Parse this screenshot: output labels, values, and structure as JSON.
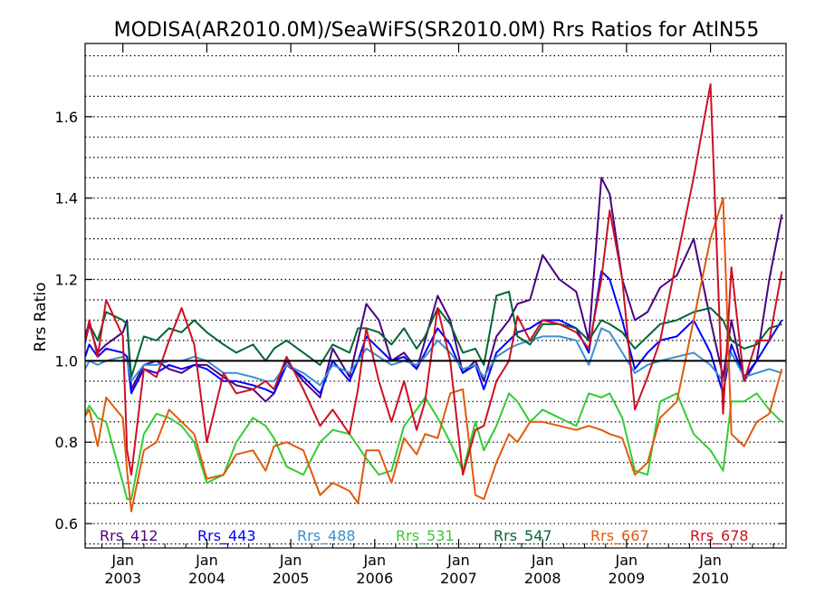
{
  "chart_data": {
    "type": "line",
    "title": "MODISA(AR2010.0M)/SeaWiFS(SR2010.0M)  Rrs Ratios for AtlN55",
    "ylabel": "Rrs Ratio",
    "xlabel": "",
    "xlim": [
      2002.55,
      2010.9
    ],
    "ylim": [
      0.54,
      1.78
    ],
    "yticks": [
      0.6,
      0.8,
      1.0,
      1.2,
      1.4,
      1.6
    ],
    "ytick_labels": [
      "0.6",
      "0.8",
      "1.0",
      "1.2",
      "1.4",
      "1.6"
    ],
    "grid": "horizontal dotted",
    "reference_line": 1.0,
    "xticks": [
      {
        "top": "Jan",
        "bottom": "2003",
        "x": 2003.0
      },
      {
        "top": "Jan",
        "bottom": "2004",
        "x": 2004.0
      },
      {
        "top": "Jan",
        "bottom": "2005",
        "x": 2005.0
      },
      {
        "top": "Jan",
        "bottom": "2006",
        "x": 2006.0
      },
      {
        "top": "Jan",
        "bottom": "2007",
        "x": 2007.0
      },
      {
        "top": "Jan",
        "bottom": "2008",
        "x": 2008.0
      },
      {
        "top": "Jan",
        "bottom": "2009",
        "x": 2009.0
      },
      {
        "top": "Jan",
        "bottom": "2010",
        "x": 2010.0
      }
    ],
    "legend_placement": "bottom",
    "series": [
      {
        "name": "Rrs_412",
        "color": "#4b0082",
        "x": [
          2002.5,
          2002.6,
          2002.7,
          2002.8,
          2003.0,
          2003.05,
          2003.1,
          2003.25,
          2003.4,
          2003.55,
          2003.7,
          2003.85,
          2004.0,
          2004.2,
          2004.35,
          2004.55,
          2004.7,
          2004.8,
          2004.95,
          2005.15,
          2005.35,
          2005.5,
          2005.7,
          2005.8,
          2005.9,
          2006.05,
          2006.2,
          2006.35,
          2006.5,
          2006.6,
          2006.75,
          2006.9,
          2007.05,
          2007.2,
          2007.3,
          2007.45,
          2007.6,
          2007.7,
          2007.85,
          2008.0,
          2008.2,
          2008.4,
          2008.55,
          2008.7,
          2008.8,
          2008.95,
          2009.1,
          2009.25,
          2009.4,
          2009.6,
          2009.8,
          2010.0,
          2010.15,
          2010.25,
          2010.4,
          2010.55,
          2010.7,
          2010.85
        ],
        "values": [
          1.0,
          1.09,
          1.02,
          1.04,
          1.07,
          1.1,
          0.93,
          0.99,
          1.0,
          0.98,
          0.97,
          0.99,
          0.99,
          0.96,
          0.94,
          0.93,
          0.9,
          0.92,
          1.0,
          0.95,
          0.91,
          1.03,
          0.96,
          1.05,
          1.14,
          1.1,
          1.0,
          1.02,
          0.98,
          1.05,
          1.16,
          1.1,
          0.97,
          1.0,
          0.95,
          1.06,
          1.1,
          1.14,
          1.15,
          1.26,
          1.2,
          1.17,
          1.05,
          1.45,
          1.41,
          1.2,
          1.1,
          1.12,
          1.18,
          1.21,
          1.3,
          1.1,
          0.96,
          1.1,
          0.95,
          1.0,
          1.2,
          1.36
        ]
      },
      {
        "name": "Rrs_443",
        "color": "#0000ff",
        "x": [
          2002.5,
          2002.6,
          2002.7,
          2002.8,
          2003.0,
          2003.05,
          2003.1,
          2003.25,
          2003.4,
          2003.55,
          2003.7,
          2003.85,
          2004.0,
          2004.2,
          2004.35,
          2004.55,
          2004.7,
          2004.8,
          2004.95,
          2005.15,
          2005.35,
          2005.5,
          2005.7,
          2005.8,
          2005.9,
          2006.05,
          2006.2,
          2006.35,
          2006.5,
          2006.6,
          2006.75,
          2006.9,
          2007.05,
          2007.2,
          2007.3,
          2007.45,
          2007.6,
          2007.7,
          2007.85,
          2008.0,
          2008.2,
          2008.4,
          2008.55,
          2008.7,
          2008.8,
          2008.95,
          2009.1,
          2009.25,
          2009.4,
          2009.6,
          2009.8,
          2010.0,
          2010.15,
          2010.25,
          2010.4,
          2010.55,
          2010.7,
          2010.85
        ],
        "values": [
          0.98,
          1.04,
          1.01,
          1.03,
          1.02,
          1.01,
          0.92,
          0.98,
          0.97,
          0.99,
          0.98,
          0.99,
          0.98,
          0.95,
          0.95,
          0.94,
          0.93,
          0.92,
          0.99,
          0.96,
          0.92,
          1.0,
          0.95,
          1.0,
          1.06,
          1.03,
          1.0,
          1.01,
          0.98,
          1.02,
          1.08,
          1.04,
          0.97,
          0.99,
          0.93,
          1.02,
          1.05,
          1.07,
          1.08,
          1.1,
          1.1,
          1.08,
          1.02,
          1.22,
          1.2,
          1.1,
          0.98,
          1.02,
          1.05,
          1.06,
          1.1,
          1.02,
          0.92,
          1.04,
          0.96,
          1.0,
          1.05,
          1.1
        ]
      },
      {
        "name": "Rrs_488",
        "color": "#3a8fd0",
        "x": [
          2002.5,
          2002.6,
          2002.7,
          2002.8,
          2003.0,
          2003.05,
          2003.1,
          2003.25,
          2003.4,
          2003.55,
          2003.7,
          2003.85,
          2004.0,
          2004.2,
          2004.35,
          2004.55,
          2004.7,
          2004.8,
          2004.95,
          2005.15,
          2005.35,
          2005.5,
          2005.7,
          2005.8,
          2005.9,
          2006.05,
          2006.2,
          2006.35,
          2006.5,
          2006.6,
          2006.75,
          2006.9,
          2007.05,
          2007.2,
          2007.3,
          2007.45,
          2007.6,
          2007.7,
          2007.85,
          2008.0,
          2008.2,
          2008.4,
          2008.55,
          2008.7,
          2008.8,
          2008.95,
          2009.1,
          2009.25,
          2009.4,
          2009.6,
          2009.8,
          2010.0,
          2010.15,
          2010.25,
          2010.4,
          2010.55,
          2010.7,
          2010.85
        ],
        "values": [
          0.96,
          1.0,
          0.99,
          1.0,
          1.01,
          1.0,
          0.95,
          0.99,
          0.99,
          1.0,
          1.0,
          1.01,
          1.0,
          0.97,
          0.97,
          0.96,
          0.95,
          0.95,
          0.99,
          0.97,
          0.94,
          0.99,
          0.97,
          1.0,
          1.03,
          1.01,
          0.99,
          1.0,
          0.99,
          1.01,
          1.05,
          1.02,
          0.98,
          0.99,
          0.96,
          1.01,
          1.03,
          1.04,
          1.05,
          1.06,
          1.06,
          1.05,
          0.99,
          1.08,
          1.07,
          1.02,
          0.97,
          0.99,
          1.0,
          1.01,
          1.02,
          0.99,
          0.95,
          1.02,
          0.96,
          0.97,
          0.98,
          0.97
        ]
      },
      {
        "name": "Rrs_531",
        "color": "#33cc33",
        "x": [
          2002.5,
          2002.6,
          2002.7,
          2002.8,
          2003.0,
          2003.05,
          2003.1,
          2003.25,
          2003.4,
          2003.55,
          2003.7,
          2003.85,
          2004.0,
          2004.2,
          2004.35,
          2004.55,
          2004.7,
          2004.8,
          2004.95,
          2005.15,
          2005.35,
          2005.5,
          2005.7,
          2005.8,
          2005.9,
          2006.05,
          2006.2,
          2006.35,
          2006.5,
          2006.6,
          2006.75,
          2006.9,
          2007.05,
          2007.2,
          2007.3,
          2007.45,
          2007.6,
          2007.7,
          2007.85,
          2008.0,
          2008.2,
          2008.4,
          2008.55,
          2008.7,
          2008.8,
          2008.95,
          2009.1,
          2009.25,
          2009.4,
          2009.6,
          2009.8,
          2010.0,
          2010.15,
          2010.25,
          2010.4,
          2010.55,
          2010.7,
          2010.85
        ],
        "values": [
          0.85,
          0.89,
          0.86,
          0.85,
          0.7,
          0.66,
          0.66,
          0.82,
          0.87,
          0.86,
          0.84,
          0.8,
          0.7,
          0.72,
          0.8,
          0.86,
          0.84,
          0.81,
          0.74,
          0.72,
          0.8,
          0.83,
          0.82,
          0.79,
          0.76,
          0.72,
          0.73,
          0.84,
          0.88,
          0.91,
          0.86,
          0.8,
          0.73,
          0.85,
          0.78,
          0.84,
          0.92,
          0.9,
          0.85,
          0.88,
          0.86,
          0.84,
          0.92,
          0.91,
          0.92,
          0.86,
          0.73,
          0.72,
          0.9,
          0.92,
          0.82,
          0.78,
          0.73,
          0.9,
          0.9,
          0.92,
          0.88,
          0.85
        ]
      },
      {
        "name": "Rrs_547",
        "color": "#006633",
        "x": [
          2002.5,
          2002.6,
          2002.7,
          2002.8,
          2003.0,
          2003.05,
          2003.1,
          2003.25,
          2003.4,
          2003.55,
          2003.7,
          2003.85,
          2004.0,
          2004.2,
          2004.35,
          2004.55,
          2004.7,
          2004.8,
          2004.95,
          2005.15,
          2005.35,
          2005.5,
          2005.7,
          2005.8,
          2005.9,
          2006.05,
          2006.2,
          2006.35,
          2006.5,
          2006.6,
          2006.75,
          2006.9,
          2007.05,
          2007.2,
          2007.3,
          2007.45,
          2007.6,
          2007.7,
          2007.85,
          2008.0,
          2008.2,
          2008.4,
          2008.55,
          2008.7,
          2008.8,
          2008.95,
          2009.1,
          2009.25,
          2009.4,
          2009.6,
          2009.8,
          2010.0,
          2010.15,
          2010.25,
          2010.4,
          2010.55,
          2010.7,
          2010.85
        ],
        "values": [
          1.04,
          1.09,
          1.05,
          1.12,
          1.1,
          1.09,
          0.96,
          1.06,
          1.05,
          1.08,
          1.07,
          1.1,
          1.07,
          1.04,
          1.02,
          1.04,
          1.0,
          1.03,
          1.05,
          1.02,
          0.99,
          1.04,
          1.02,
          1.08,
          1.08,
          1.07,
          1.04,
          1.08,
          1.03,
          1.06,
          1.13,
          1.09,
          1.02,
          1.03,
          0.99,
          1.16,
          1.17,
          1.06,
          1.04,
          1.09,
          1.09,
          1.08,
          1.05,
          1.1,
          1.09,
          1.07,
          1.03,
          1.06,
          1.09,
          1.1,
          1.12,
          1.13,
          1.1,
          1.05,
          1.03,
          1.04,
          1.08,
          1.09
        ]
      },
      {
        "name": "Rrs_667",
        "color": "#e05a10",
        "x": [
          2002.5,
          2002.6,
          2002.7,
          2002.8,
          2003.0,
          2003.05,
          2003.1,
          2003.25,
          2003.4,
          2003.55,
          2003.7,
          2003.85,
          2004.0,
          2004.2,
          2004.35,
          2004.55,
          2004.7,
          2004.8,
          2004.95,
          2005.15,
          2005.35,
          2005.5,
          2005.7,
          2005.8,
          2005.9,
          2006.05,
          2006.2,
          2006.35,
          2006.5,
          2006.6,
          2006.75,
          2006.9,
          2007.05,
          2007.2,
          2007.3,
          2007.45,
          2007.6,
          2007.7,
          2007.85,
          2008.0,
          2008.2,
          2008.4,
          2008.55,
          2008.7,
          2008.8,
          2008.95,
          2009.1,
          2009.25,
          2009.4,
          2009.6,
          2009.8,
          2010.0,
          2010.15,
          2010.25,
          2010.4,
          2010.55,
          2010.7,
          2010.85
        ],
        "values": [
          0.85,
          0.88,
          0.79,
          0.91,
          0.86,
          0.73,
          0.63,
          0.78,
          0.8,
          0.88,
          0.85,
          0.82,
          0.71,
          0.72,
          0.77,
          0.78,
          0.73,
          0.79,
          0.8,
          0.78,
          0.67,
          0.7,
          0.68,
          0.65,
          0.78,
          0.78,
          0.7,
          0.81,
          0.77,
          0.82,
          0.81,
          0.92,
          0.93,
          0.67,
          0.66,
          0.75,
          0.82,
          0.8,
          0.85,
          0.85,
          0.84,
          0.83,
          0.84,
          0.83,
          0.82,
          0.81,
          0.72,
          0.75,
          0.86,
          0.9,
          1.1,
          1.3,
          1.4,
          0.82,
          0.79,
          0.85,
          0.87,
          0.98
        ]
      },
      {
        "name": "Rrs_678",
        "color": "#cc1122",
        "x": [
          2002.5,
          2002.6,
          2002.7,
          2002.8,
          2003.0,
          2003.05,
          2003.1,
          2003.25,
          2003.4,
          2003.55,
          2003.7,
          2003.85,
          2004.0,
          2004.2,
          2004.35,
          2004.55,
          2004.7,
          2004.8,
          2004.95,
          2005.15,
          2005.35,
          2005.5,
          2005.7,
          2005.8,
          2005.9,
          2006.05,
          2006.2,
          2006.35,
          2006.5,
          2006.6,
          2006.75,
          2006.9,
          2007.05,
          2007.2,
          2007.3,
          2007.45,
          2007.6,
          2007.7,
          2007.85,
          2008.0,
          2008.2,
          2008.4,
          2008.55,
          2008.7,
          2008.8,
          2008.95,
          2009.1,
          2009.25,
          2009.4,
          2009.6,
          2009.8,
          2010.0,
          2010.15,
          2010.25,
          2010.4,
          2010.55,
          2010.7,
          2010.85
        ],
        "values": [
          1.0,
          1.1,
          1.01,
          1.15,
          1.06,
          0.78,
          0.72,
          0.98,
          0.96,
          1.05,
          1.13,
          1.04,
          0.8,
          0.97,
          0.92,
          0.93,
          0.95,
          0.93,
          1.01,
          0.93,
          0.84,
          0.88,
          0.82,
          0.93,
          1.08,
          0.95,
          0.85,
          0.95,
          0.83,
          0.9,
          1.13,
          1.0,
          0.72,
          0.83,
          0.84,
          0.95,
          1.0,
          1.11,
          1.05,
          1.1,
          1.09,
          1.07,
          1.03,
          1.2,
          1.37,
          1.2,
          0.88,
          0.96,
          1.05,
          1.25,
          1.45,
          1.68,
          0.87,
          1.23,
          0.95,
          1.05,
          1.05,
          1.22
        ]
      }
    ]
  }
}
